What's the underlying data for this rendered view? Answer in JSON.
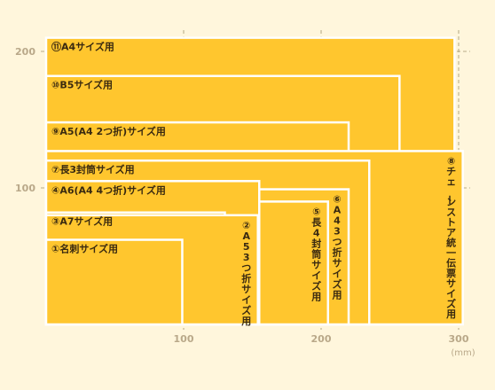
{
  "chart_data": {
    "type": "diagram",
    "x_ticks": [
      100,
      200,
      300
    ],
    "y_ticks": [
      100,
      200
    ],
    "unit": "(mm)",
    "papers": [
      {
        "label": "⑪A4サイズ用",
        "width": 297,
        "height": 210,
        "orientation": "h"
      },
      {
        "label": "⑩B5サイズ用",
        "width": 257,
        "height": 182,
        "orientation": "h"
      },
      {
        "label": "⑨A5(A4 2つ折)サイズ用",
        "width": 220,
        "height": 148,
        "orientation": "h"
      },
      {
        "label": "⑧チェーンストア統一伝票サイズ用",
        "width": 303,
        "height": 127,
        "orientation": "v"
      },
      {
        "label": "⑦長3封筒サイズ用",
        "width": 235,
        "height": 120,
        "orientation": "h"
      },
      {
        "label": "⑥A4 3つ折サイズ用",
        "width": 220,
        "height": 99,
        "orientation": "v"
      },
      {
        "label": "⑤長4封筒サイズ用",
        "width": 205,
        "height": 90,
        "orientation": "v"
      },
      {
        "label": "④A6(A4 4つ折)サイズ用",
        "width": 155,
        "height": 105,
        "orientation": "h"
      },
      {
        "label": "③A7サイズ用",
        "width": 130,
        "height": 82,
        "orientation": "h"
      },
      {
        "label": "②A5 3つ折サイズ用",
        "width": 154,
        "height": 80,
        "orientation": "v"
      },
      {
        "label": "①名刺サイズ用",
        "width": 99,
        "height": 62,
        "orientation": "h"
      }
    ]
  }
}
